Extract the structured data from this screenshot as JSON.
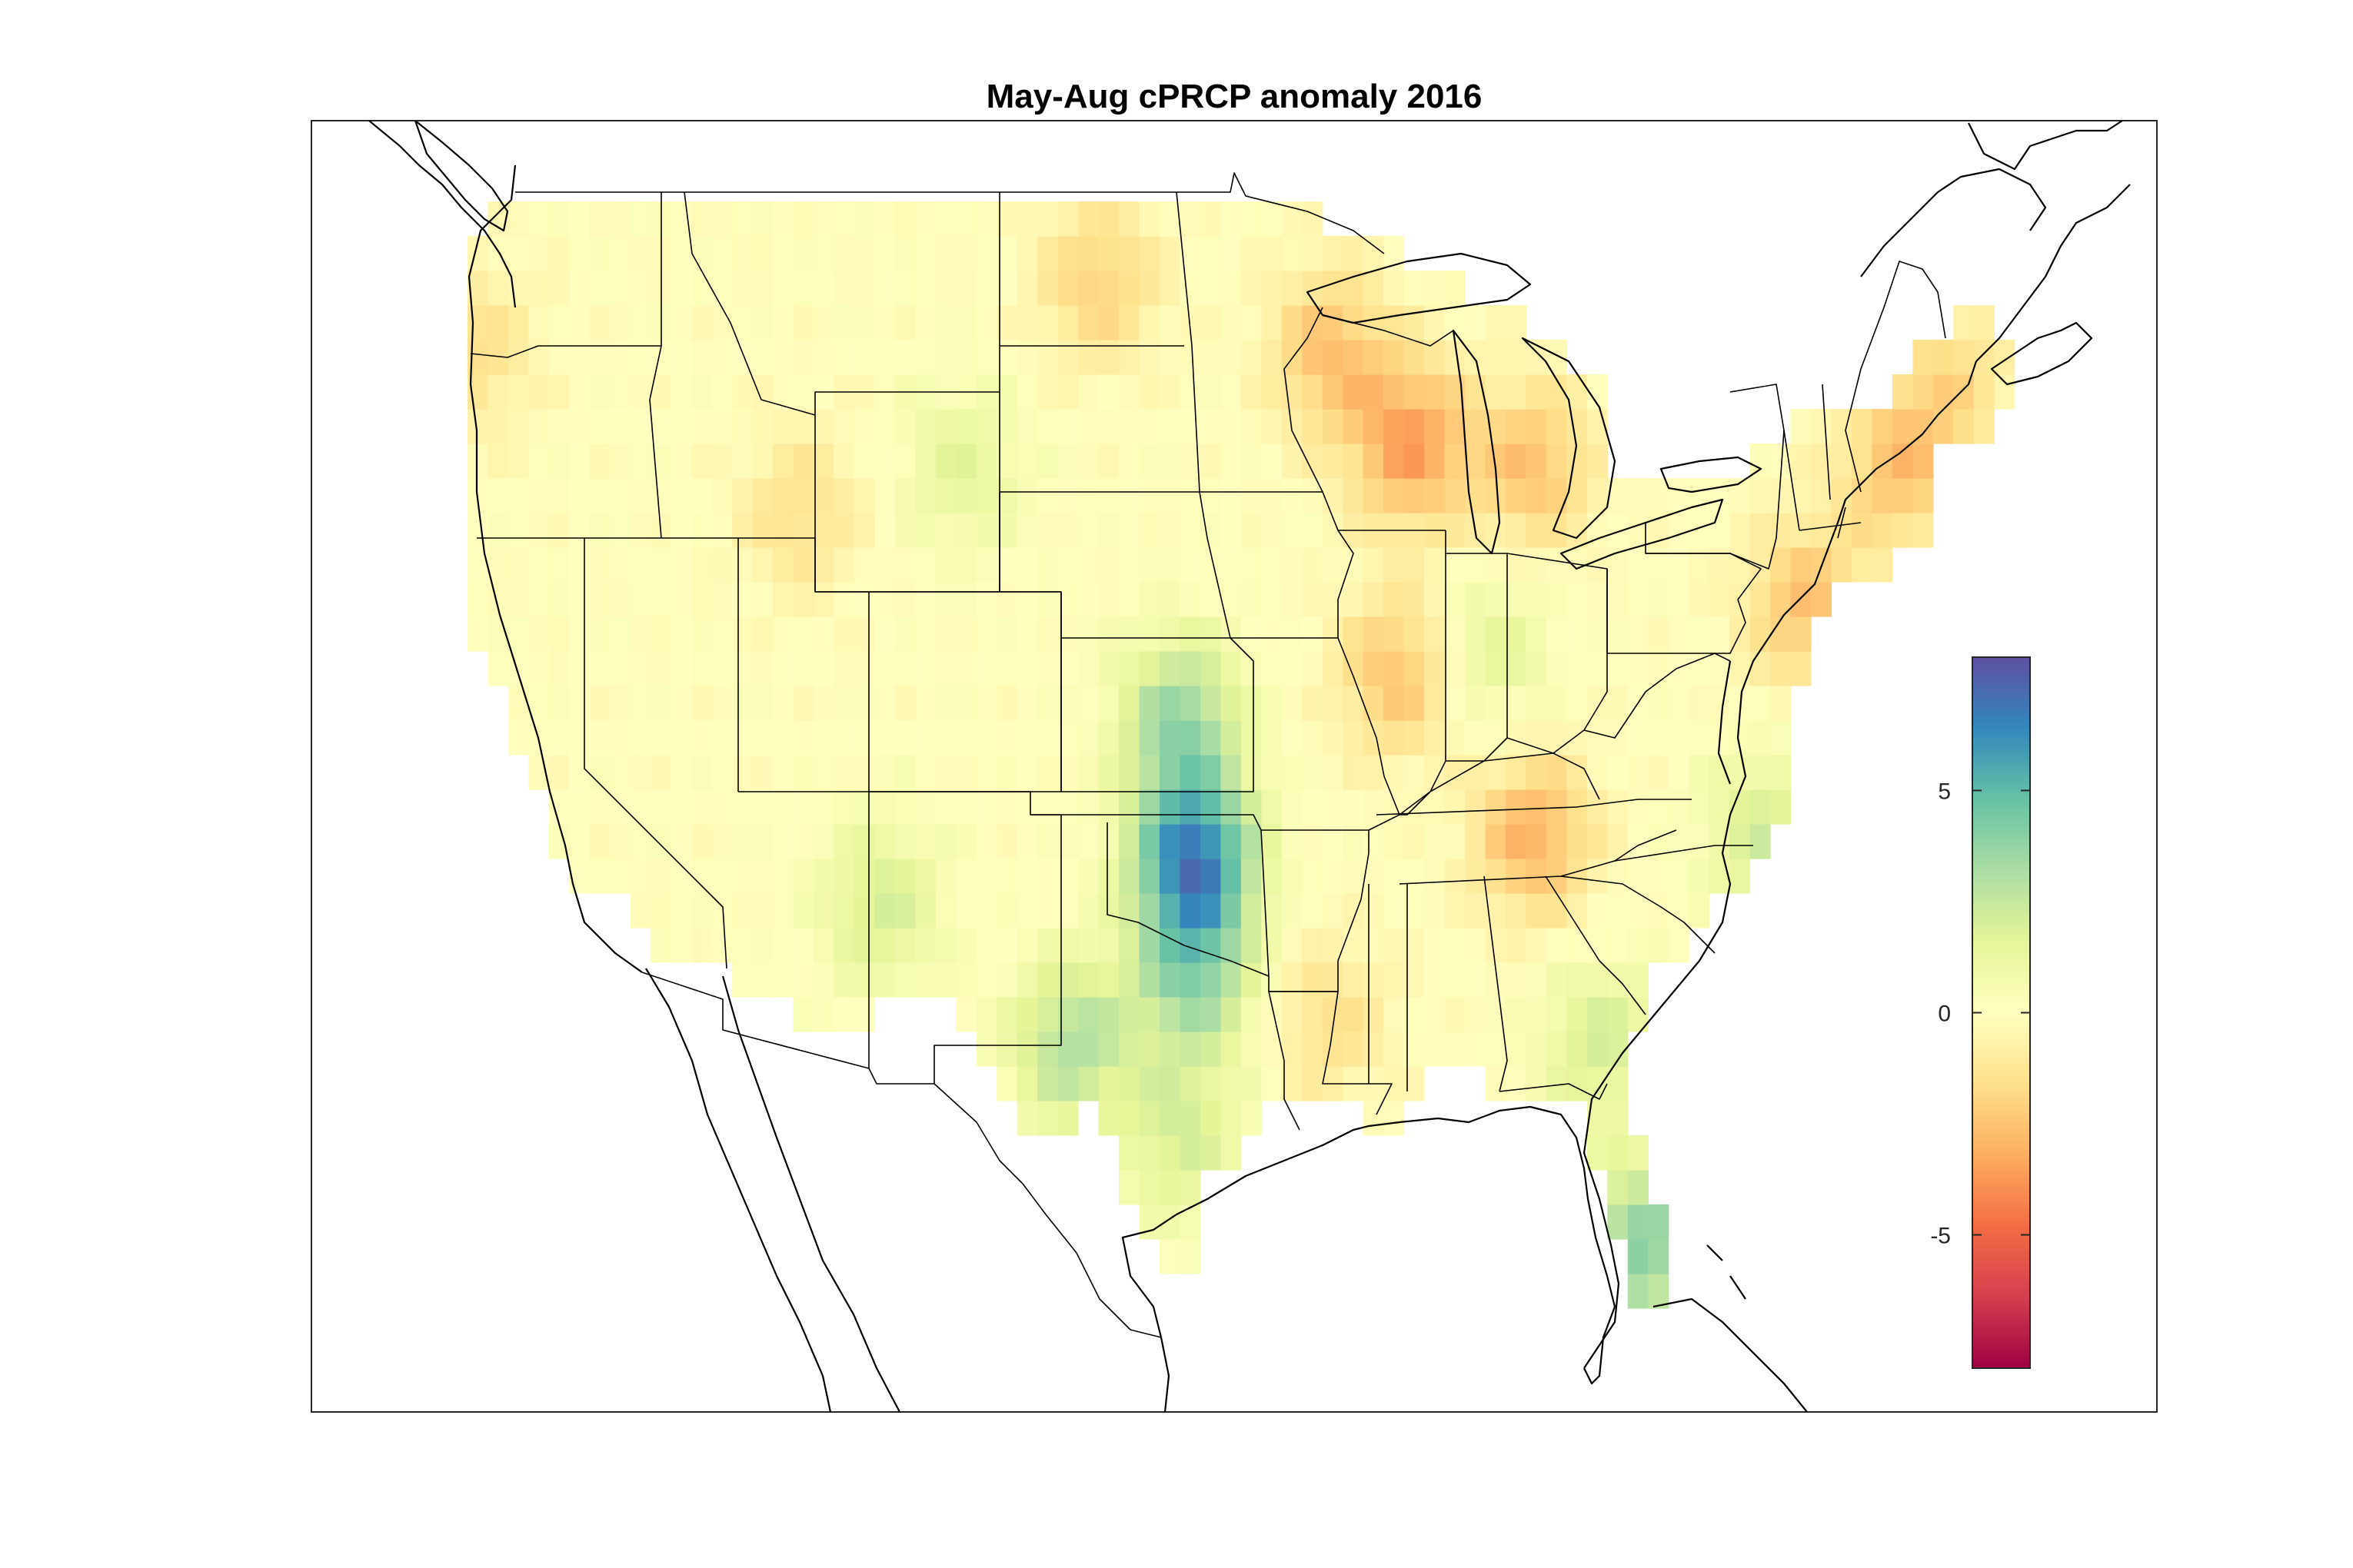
{
  "title": "May-Aug cPRCP anomaly 2016",
  "colorbar": {
    "ticks": [
      {
        "value": 5,
        "label": "5"
      },
      {
        "value": 0,
        "label": "0"
      },
      {
        "value": -5,
        "label": "-5"
      }
    ],
    "range": [
      -8,
      8
    ],
    "colors": [
      "#9e0142",
      "#d53e4f",
      "#f46d43",
      "#fdae61",
      "#fee08b",
      "#ffffbf",
      "#e6f598",
      "#abdda4",
      "#66c2a5",
      "#3288bd",
      "#5e4fa2"
    ]
  },
  "chart_data": {
    "type": "heatmap",
    "title": "May-Aug cPRCP anomaly 2016",
    "region": "contiguous United States",
    "lon_range": [
      -130,
      -62
    ],
    "lat_range": [
      23,
      51
    ],
    "colorbar_range": [
      -8,
      8
    ],
    "anomaly_hotspots": [
      {
        "lon": -106,
        "lat": 43.5,
        "value": 1.5
      },
      {
        "lon": -98,
        "lat": 38,
        "value": 3.5
      },
      {
        "lon": -97.5,
        "lat": 35,
        "value": 6.5
      },
      {
        "lon": -97.5,
        "lat": 32.5,
        "value": 3.5
      },
      {
        "lon": -102,
        "lat": 31,
        "value": 3.0
      },
      {
        "lon": -109,
        "lat": 34,
        "value": 2.0
      },
      {
        "lon": -98,
        "lat": 29,
        "value": 2.0
      },
      {
        "lon": -81,
        "lat": 26.5,
        "value": 4.0
      },
      {
        "lon": -82.5,
        "lat": 31,
        "value": 2.0
      },
      {
        "lon": -76.5,
        "lat": 35.5,
        "value": 2.0
      },
      {
        "lon": -86.5,
        "lat": 39.5,
        "value": 1.5
      },
      {
        "lon": -89.5,
        "lat": 44,
        "value": -3.5
      },
      {
        "lon": -92.5,
        "lat": 46,
        "value": -2.5
      },
      {
        "lon": -90,
        "lat": 39,
        "value": -2.5
      },
      {
        "lon": -85,
        "lat": 35.5,
        "value": -3.0
      },
      {
        "lon": -85,
        "lat": 43.5,
        "value": -2.5
      },
      {
        "lon": -101,
        "lat": 47.5,
        "value": -2.0
      },
      {
        "lon": -75,
        "lat": 40.5,
        "value": -2.5
      },
      {
        "lon": -71.5,
        "lat": 43.5,
        "value": -2.5
      },
      {
        "lon": -69.5,
        "lat": 45.5,
        "value": -1.5
      },
      {
        "lon": -112,
        "lat": 42.5,
        "value": -1.5
      },
      {
        "lon": -92.5,
        "lat": 31.5,
        "value": -1.5
      },
      {
        "lon": -124,
        "lat": 46,
        "value": -1.5
      }
    ]
  }
}
